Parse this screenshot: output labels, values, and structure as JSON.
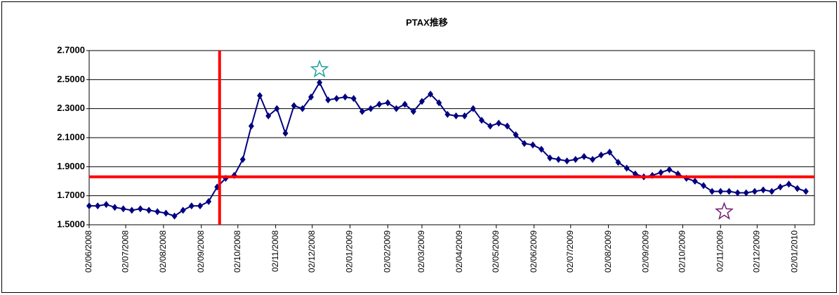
{
  "chart_data": {
    "type": "line",
    "title": "PTAX推移",
    "x": [
      "02/06/2008",
      "09/06/2008",
      "16/06/2008",
      "23/06/2008",
      "30/06/2008",
      "07/07/2008",
      "14/07/2008",
      "21/07/2008",
      "28/07/2008",
      "04/08/2008",
      "11/08/2008",
      "18/08/2008",
      "25/08/2008",
      "01/09/2008",
      "08/09/2008",
      "15/09/2008",
      "22/09/2008",
      "29/09/2008",
      "06/10/2008",
      "13/10/2008",
      "20/10/2008",
      "27/10/2008",
      "03/11/2008",
      "10/11/2008",
      "17/11/2008",
      "24/11/2008",
      "01/12/2008",
      "08/12/2008",
      "15/12/2008",
      "22/12/2008",
      "29/12/2008",
      "05/01/2009",
      "12/01/2009",
      "19/01/2009",
      "26/01/2009",
      "02/02/2009",
      "09/02/2009",
      "16/02/2009",
      "23/02/2009",
      "02/03/2009",
      "09/03/2009",
      "16/03/2009",
      "23/03/2009",
      "30/03/2009",
      "06/04/2009",
      "13/04/2009",
      "20/04/2009",
      "27/04/2009",
      "04/05/2009",
      "11/05/2009",
      "18/05/2009",
      "25/05/2009",
      "01/06/2009",
      "08/06/2009",
      "15/06/2009",
      "22/06/2009",
      "29/06/2009",
      "06/07/2009",
      "13/07/2009",
      "20/07/2009",
      "27/07/2009",
      "03/08/2009",
      "10/08/2009",
      "17/08/2009",
      "24/08/2009",
      "31/08/2009",
      "07/09/2009",
      "14/09/2009",
      "21/09/2009",
      "28/09/2009",
      "05/10/2009",
      "12/10/2009",
      "19/10/2009",
      "26/10/2009",
      "02/11/2009",
      "09/11/2009",
      "16/11/2009",
      "23/11/2009",
      "30/11/2009",
      "07/12/2009",
      "14/12/2009",
      "21/12/2009",
      "28/12/2009",
      "04/01/2010",
      "11/01/2010"
    ],
    "series": [
      {
        "name": "PTAX",
        "color": "#000080",
        "values": [
          1.63,
          1.63,
          1.64,
          1.62,
          1.61,
          1.6,
          1.61,
          1.6,
          1.59,
          1.58,
          1.56,
          1.6,
          1.63,
          1.63,
          1.66,
          1.76,
          1.82,
          1.84,
          1.95,
          2.18,
          2.39,
          2.25,
          2.3,
          2.13,
          2.32,
          2.3,
          2.38,
          2.48,
          2.36,
          2.37,
          2.38,
          2.37,
          2.28,
          2.3,
          2.33,
          2.34,
          2.3,
          2.33,
          2.28,
          2.35,
          2.4,
          2.34,
          2.26,
          2.25,
          2.25,
          2.3,
          2.22,
          2.18,
          2.2,
          2.18,
          2.12,
          2.06,
          2.05,
          2.02,
          1.96,
          1.95,
          1.94,
          1.95,
          1.97,
          1.95,
          1.98,
          2.0,
          1.93,
          1.89,
          1.85,
          1.83,
          1.84,
          1.86,
          1.88,
          1.85,
          1.82,
          1.8,
          1.77,
          1.73,
          1.73,
          1.73,
          1.72,
          1.72,
          1.73,
          1.74,
          1.73,
          1.76,
          1.78,
          1.75,
          1.73
        ]
      }
    ],
    "xlim": [
      "02/06/2008",
      "18/01/2010"
    ],
    "xticks": [
      "02/06/2008",
      "02/07/2008",
      "02/08/2008",
      "02/09/2008",
      "02/10/2008",
      "02/11/2008",
      "02/12/2008",
      "02/01/2009",
      "02/02/2009",
      "02/03/2009",
      "02/04/2009",
      "02/05/2009",
      "02/06/2009",
      "02/07/2009",
      "02/08/2009",
      "02/09/2009",
      "02/10/2009",
      "02/11/2009",
      "02/12/2009",
      "02/01/2010"
    ],
    "ylim": [
      1.5,
      2.7
    ],
    "yticks": [
      {
        "value": 1.5,
        "label": "1.5000"
      },
      {
        "value": 1.7,
        "label": "1.7000"
      },
      {
        "value": 1.9,
        "label": "1.9000"
      },
      {
        "value": 2.1,
        "label": "2.1000"
      },
      {
        "value": 2.3,
        "label": "2.3000"
      },
      {
        "value": 2.5,
        "label": "2.5000"
      },
      {
        "value": 2.7,
        "label": "2.7000"
      }
    ],
    "grid": true,
    "reference_lines": {
      "color": "#ff0000",
      "y": 1.83,
      "x": "17/09/2008"
    },
    "star_markers": [
      {
        "x": "08/12/2008",
        "y": 2.57,
        "color": "#20a0a0"
      },
      {
        "x": "05/11/2009",
        "y": 1.59,
        "color": "#702070"
      }
    ]
  }
}
